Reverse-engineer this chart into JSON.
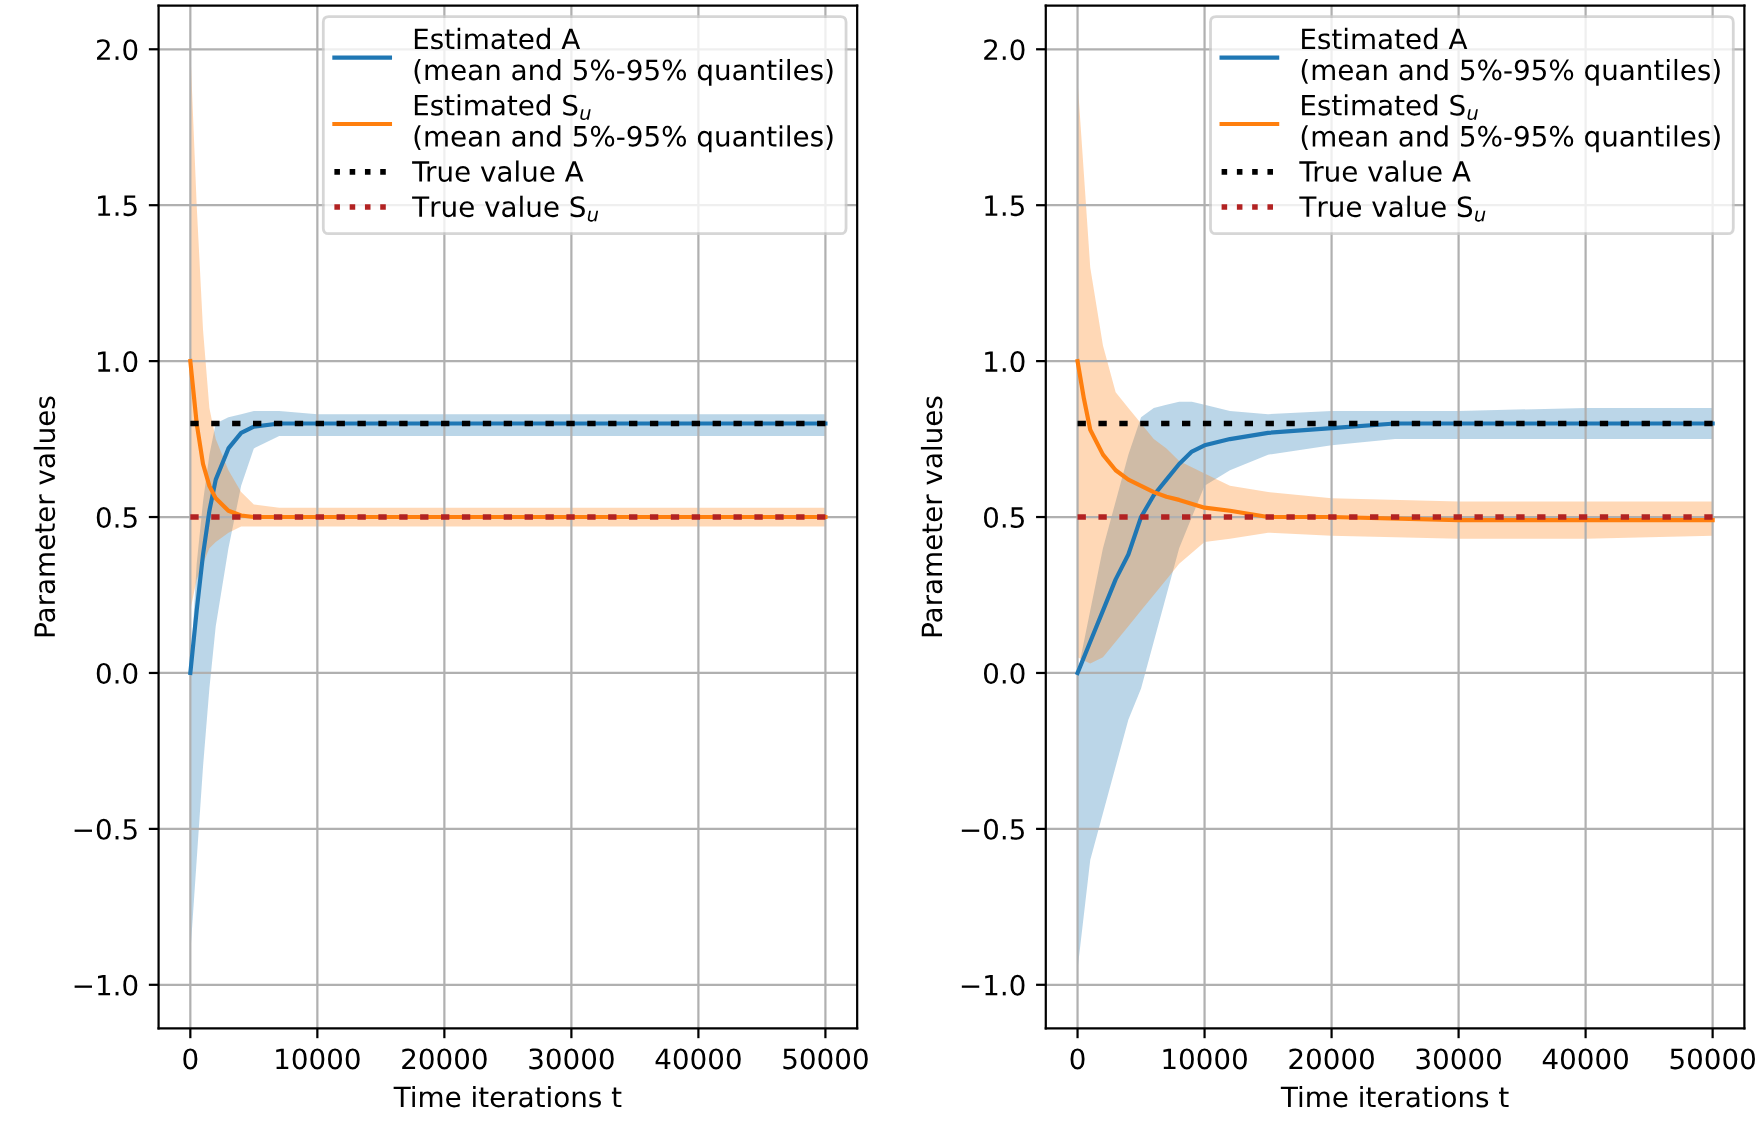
{
  "chart_data": [
    {
      "type": "line",
      "xlabel": "Time iterations t",
      "ylabel": "Parameter values",
      "xlim": [
        -2500,
        52500
      ],
      "ylim": [
        -1.14,
        2.14
      ],
      "xticks": [
        0,
        10000,
        20000,
        30000,
        40000,
        50000
      ],
      "yticks": [
        {
          "value": -1.0,
          "label": "−1.0"
        },
        {
          "value": -0.5,
          "label": "−0.5"
        },
        {
          "value": 0.0,
          "label": "0.0"
        },
        {
          "value": 0.5,
          "label": "0.5"
        },
        {
          "value": 1.0,
          "label": "1.0"
        },
        {
          "value": 1.5,
          "label": "1.5"
        },
        {
          "value": 2.0,
          "label": "2.0"
        }
      ],
      "grid": true,
      "legend": "top right",
      "series": [
        {
          "name": "Estimated A\n(mean and 5%-95% quantiles)",
          "color": "#1f77b4",
          "x": [
            0,
            500,
            1000,
            1500,
            2000,
            3000,
            4000,
            5000,
            7000,
            10000,
            15000,
            20000,
            30000,
            40000,
            50000
          ],
          "values": [
            0,
            0.2,
            0.38,
            0.52,
            0.62,
            0.72,
            0.77,
            0.79,
            0.8,
            0.8,
            0.8,
            0.8,
            0.8,
            0.8,
            0.8
          ],
          "lower": [
            -0.9,
            -0.6,
            -0.3,
            -0.05,
            0.15,
            0.4,
            0.6,
            0.72,
            0.76,
            0.76,
            0.76,
            0.76,
            0.76,
            0.76,
            0.76
          ],
          "upper": [
            0,
            0.35,
            0.55,
            0.7,
            0.8,
            0.82,
            0.83,
            0.84,
            0.84,
            0.83,
            0.83,
            0.83,
            0.83,
            0.83,
            0.83
          ]
        },
        {
          "name": "Estimated S$_{u}$\n(mean and 5%-95% quantiles)",
          "color": "#ff7f0e",
          "x": [
            0,
            500,
            1000,
            1500,
            2000,
            3000,
            4000,
            5000,
            7000,
            10000,
            15000,
            20000,
            30000,
            40000,
            50000
          ],
          "values": [
            1.0,
            0.8,
            0.67,
            0.6,
            0.56,
            0.52,
            0.505,
            0.5,
            0.5,
            0.5,
            0.5,
            0.5,
            0.5,
            0.5,
            0.5
          ],
          "lower": [
            0.2,
            0.3,
            0.35,
            0.4,
            0.42,
            0.45,
            0.47,
            0.47,
            0.47,
            0.47,
            0.47,
            0.47,
            0.47,
            0.47,
            0.47
          ],
          "upper": [
            2.0,
            1.5,
            1.1,
            0.85,
            0.75,
            0.65,
            0.58,
            0.54,
            0.53,
            0.53,
            0.53,
            0.53,
            0.53,
            0.53,
            0.53
          ]
        },
        {
          "name": "True value A",
          "color": "#000000",
          "line_style": "dotted",
          "x": [
            0,
            50000
          ],
          "values": [
            0.8,
            0.8
          ]
        },
        {
          "name": "True value S$_{u}$",
          "color": "#b22222",
          "line_style": "dotted",
          "x": [
            0,
            50000
          ],
          "values": [
            0.5,
            0.5
          ]
        }
      ]
    },
    {
      "type": "line",
      "xlabel": "Time iterations t",
      "ylabel": "Parameter values",
      "xlim": [
        -2500,
        52500
      ],
      "ylim": [
        -1.14,
        2.14
      ],
      "xticks": [
        0,
        10000,
        20000,
        30000,
        40000,
        50000
      ],
      "yticks": [
        {
          "value": -1.0,
          "label": "−1.0"
        },
        {
          "value": -0.5,
          "label": "−0.5"
        },
        {
          "value": 0.0,
          "label": "0.0"
        },
        {
          "value": 0.5,
          "label": "0.5"
        },
        {
          "value": 1.0,
          "label": "1.0"
        },
        {
          "value": 1.5,
          "label": "1.5"
        },
        {
          "value": 2.0,
          "label": "2.0"
        }
      ],
      "grid": true,
      "legend": "top right",
      "series": [
        {
          "name": "Estimated A\n(mean and 5%-95% quantiles)",
          "color": "#1f77b4",
          "x": [
            0,
            1000,
            2000,
            3000,
            4000,
            5000,
            6000,
            7000,
            8000,
            9000,
            10000,
            12000,
            15000,
            20000,
            25000,
            30000,
            40000,
            50000
          ],
          "values": [
            0,
            0.1,
            0.2,
            0.3,
            0.38,
            0.5,
            0.57,
            0.62,
            0.67,
            0.71,
            0.73,
            0.75,
            0.77,
            0.785,
            0.8,
            0.8,
            0.8,
            0.8
          ],
          "lower": [
            -0.95,
            -0.6,
            -0.45,
            -0.3,
            -0.15,
            -0.05,
            0.1,
            0.25,
            0.4,
            0.5,
            0.6,
            0.65,
            0.7,
            0.73,
            0.75,
            0.75,
            0.75,
            0.75
          ],
          "upper": [
            0,
            0.2,
            0.4,
            0.55,
            0.7,
            0.82,
            0.85,
            0.86,
            0.87,
            0.87,
            0.86,
            0.84,
            0.83,
            0.84,
            0.84,
            0.84,
            0.85,
            0.85
          ]
        },
        {
          "name": "Estimated S$_{u}$\n(mean and 5%-95% quantiles)",
          "color": "#ff7f0e",
          "x": [
            0,
            500,
            1000,
            2000,
            3000,
            4000,
            5000,
            6000,
            7000,
            8000,
            10000,
            12000,
            15000,
            20000,
            30000,
            40000,
            50000
          ],
          "values": [
            1.0,
            0.88,
            0.78,
            0.7,
            0.65,
            0.62,
            0.6,
            0.58,
            0.565,
            0.555,
            0.53,
            0.52,
            0.5,
            0.5,
            0.49,
            0.49,
            0.49
          ],
          "lower": [
            0.05,
            0.04,
            0.03,
            0.05,
            0.1,
            0.15,
            0.2,
            0.25,
            0.3,
            0.35,
            0.42,
            0.43,
            0.45,
            0.44,
            0.43,
            0.43,
            0.44
          ],
          "upper": [
            1.9,
            1.6,
            1.3,
            1.05,
            0.9,
            0.85,
            0.8,
            0.75,
            0.72,
            0.68,
            0.64,
            0.6,
            0.58,
            0.56,
            0.55,
            0.55,
            0.55
          ]
        },
        {
          "name": "True value A",
          "color": "#000000",
          "line_style": "dotted",
          "x": [
            0,
            50000
          ],
          "values": [
            0.8,
            0.8
          ]
        },
        {
          "name": "True value S$_{u}$",
          "color": "#b22222",
          "line_style": "dotted",
          "x": [
            0,
            50000
          ],
          "values": [
            0.5,
            0.5
          ]
        }
      ]
    }
  ]
}
